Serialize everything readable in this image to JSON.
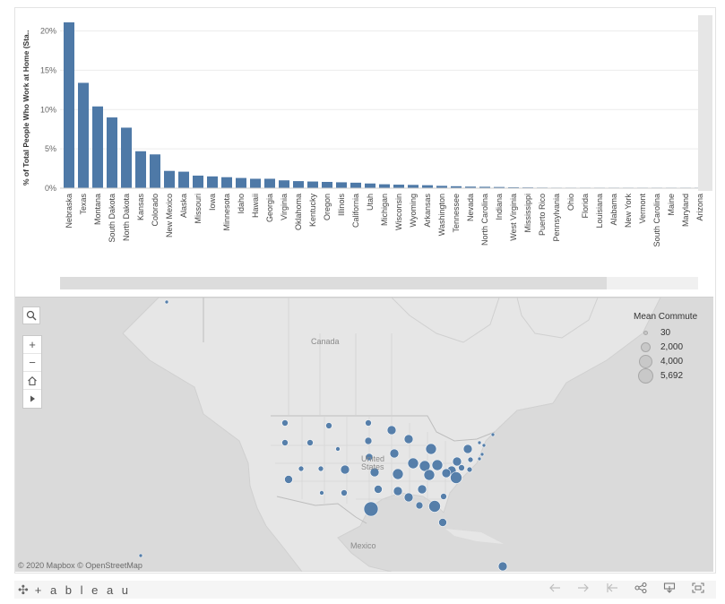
{
  "chart_data": {
    "type": "bar",
    "ylabel": "% of Total People Who Work at Home (Sta..",
    "yticks": [
      "0%",
      "5%",
      "10%",
      "15%",
      "20%"
    ],
    "ylim": [
      0,
      22
    ],
    "grid": true,
    "categories": [
      "Nebraska",
      "Texas",
      "Montana",
      "South Dakota",
      "North Dakota",
      "Kansas",
      "Colorado",
      "New Mexico",
      "Alaska",
      "Missouri",
      "Iowa",
      "Minnesota",
      "Idaho",
      "Hawaii",
      "Georgia",
      "Virginia",
      "Oklahoma",
      "Kentucky",
      "Oregon",
      "Illinois",
      "California",
      "Utah",
      "Michigan",
      "Wisconsin",
      "Wyoming",
      "Arkansas",
      "Washington",
      "Tennessee",
      "Nevada",
      "North Carolina",
      "Indiana",
      "West Virginia",
      "Mississippi",
      "Puerto Rico",
      "Pennsylvania",
      "Ohio",
      "Florida",
      "Louisiana",
      "Alabama",
      "New York",
      "Vermont",
      "South Carolina",
      "Maine",
      "Maryland",
      "Arizona"
    ],
    "values": [
      21.1,
      13.4,
      10.4,
      9.0,
      7.7,
      4.7,
      4.3,
      2.2,
      2.1,
      1.6,
      1.5,
      1.4,
      1.3,
      1.2,
      1.2,
      1.0,
      0.9,
      0.85,
      0.8,
      0.75,
      0.7,
      0.6,
      0.5,
      0.45,
      0.42,
      0.38,
      0.3,
      0.25,
      0.2,
      0.18,
      0.15,
      0.12,
      0.1,
      0.08,
      0.03,
      0.02,
      0.01,
      0.01,
      0.01,
      0.01,
      0.01,
      0.01,
      0.01,
      0.01,
      0.01
    ],
    "color": "#4e79a7"
  },
  "map": {
    "country_labels": [
      "Canada",
      "United States",
      "Mexico"
    ],
    "attribution": "© 2020 Mapbox  © OpenStreetMap",
    "point_color": "#4e79a7",
    "land_color": "#e6e6e6",
    "water_color": "#dadada",
    "legend": {
      "title": "Mean Commute",
      "items": [
        {
          "label": "30",
          "value": 30
        },
        {
          "label": "2,000",
          "value": 2000
        },
        {
          "label": "4,000",
          "value": 4000
        },
        {
          "label": "5,692",
          "value": 5692
        }
      ]
    },
    "tools": {
      "search_icon": "search-icon",
      "zoom_in": "+",
      "zoom_out": "−",
      "home_icon": "home-icon",
      "pan_icon": "play-icon"
    }
  },
  "footer": {
    "logo_text": "+ a b l e a u",
    "logo_mark": "✣",
    "icons": [
      "undo-icon",
      "redo-icon",
      "revert-icon",
      "share-icon",
      "download-icon",
      "fullscreen-icon"
    ]
  }
}
